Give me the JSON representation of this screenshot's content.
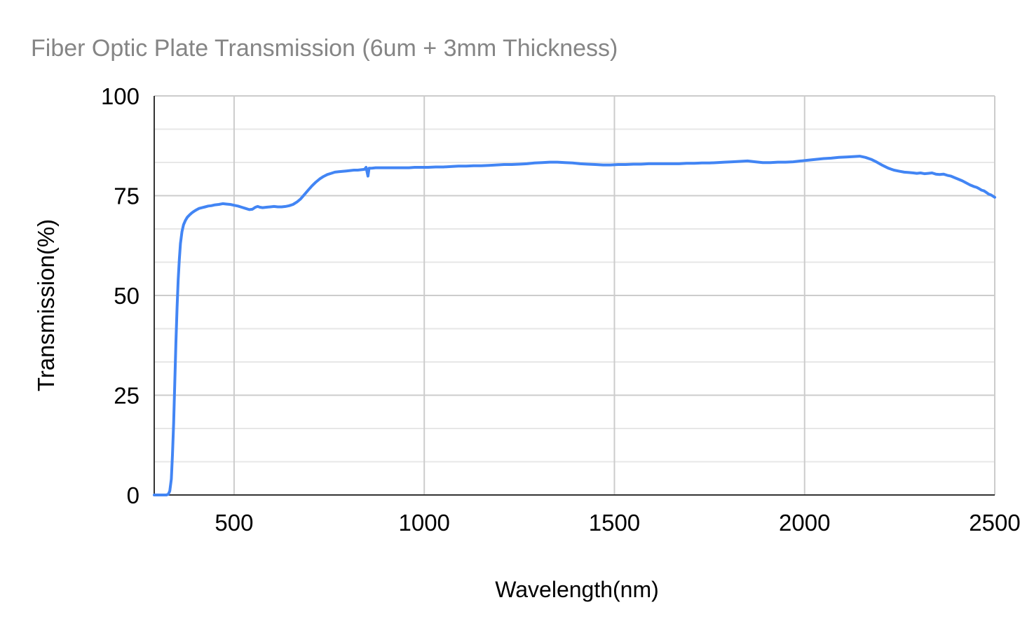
{
  "background": "#ffffff",
  "chart_data": {
    "type": "line",
    "title": "Fiber Optic Plate Transmission (6um + 3mm Thickness)",
    "xlabel": "Wavelength(nm)",
    "ylabel": "Transmission(%)",
    "xlim": [
      290,
      2500
    ],
    "ylim": [
      0,
      100
    ],
    "x_ticks": [
      500,
      1000,
      1500,
      2000,
      2500
    ],
    "y_ticks": [
      0,
      25,
      50,
      75,
      100
    ],
    "y_minor_per_major": 2,
    "grid": true,
    "legend": "none",
    "colors": {
      "title": "#858585",
      "axis_line": "#333333",
      "major_grid": "#cccccc",
      "minor_grid": "#e7e7e7",
      "tick_label": "#000000",
      "series": "#4285f4"
    },
    "series": [
      {
        "name": "Transmission",
        "color": "#4285f4",
        "stroke_width": 4,
        "points": [
          [
            290,
            0
          ],
          [
            298,
            0
          ],
          [
            306,
            0
          ],
          [
            314,
            0
          ],
          [
            322,
            0
          ],
          [
            327,
            0.2
          ],
          [
            331,
            1
          ],
          [
            335,
            4
          ],
          [
            338,
            10
          ],
          [
            341,
            18
          ],
          [
            344,
            28
          ],
          [
            347,
            38
          ],
          [
            350,
            47
          ],
          [
            353,
            54
          ],
          [
            356,
            59
          ],
          [
            359,
            63
          ],
          [
            363,
            66
          ],
          [
            367,
            67.7
          ],
          [
            372,
            68.8
          ],
          [
            377,
            69.6
          ],
          [
            383,
            70.2
          ],
          [
            389,
            70.7
          ],
          [
            395,
            71.1
          ],
          [
            400,
            71.4
          ],
          [
            408,
            71.8
          ],
          [
            416,
            72.0
          ],
          [
            424,
            72.2
          ],
          [
            432,
            72.4
          ],
          [
            440,
            72.5
          ],
          [
            450,
            72.7
          ],
          [
            460,
            72.8
          ],
          [
            470,
            73.0
          ],
          [
            480,
            72.9
          ],
          [
            490,
            72.8
          ],
          [
            500,
            72.6
          ],
          [
            510,
            72.4
          ],
          [
            520,
            72.1
          ],
          [
            530,
            71.8
          ],
          [
            540,
            71.5
          ],
          [
            548,
            71.6
          ],
          [
            556,
            72.1
          ],
          [
            562,
            72.3
          ],
          [
            568,
            72.1
          ],
          [
            575,
            72.0
          ],
          [
            585,
            72.1
          ],
          [
            595,
            72.2
          ],
          [
            605,
            72.3
          ],
          [
            615,
            72.2
          ],
          [
            625,
            72.2
          ],
          [
            635,
            72.3
          ],
          [
            645,
            72.5
          ],
          [
            655,
            72.8
          ],
          [
            665,
            73.4
          ],
          [
            675,
            74.2
          ],
          [
            685,
            75.3
          ],
          [
            695,
            76.4
          ],
          [
            705,
            77.5
          ],
          [
            715,
            78.4
          ],
          [
            725,
            79.2
          ],
          [
            735,
            79.8
          ],
          [
            745,
            80.3
          ],
          [
            755,
            80.6
          ],
          [
            765,
            80.9
          ],
          [
            775,
            81.0
          ],
          [
            785,
            81.1
          ],
          [
            795,
            81.2
          ],
          [
            805,
            81.3
          ],
          [
            815,
            81.4
          ],
          [
            825,
            81.4
          ],
          [
            835,
            81.5
          ],
          [
            843,
            81.6
          ],
          [
            847,
            82.1
          ],
          [
            850,
            80.8
          ],
          [
            852,
            79.9
          ],
          [
            855,
            81.9
          ],
          [
            862,
            81.9
          ],
          [
            872,
            82.0
          ],
          [
            885,
            82.0
          ],
          [
            900,
            82.0
          ],
          [
            915,
            82.0
          ],
          [
            930,
            82.0
          ],
          [
            945,
            82.0
          ],
          [
            960,
            82.0
          ],
          [
            975,
            82.1
          ],
          [
            990,
            82.1
          ],
          [
            1010,
            82.1
          ],
          [
            1030,
            82.2
          ],
          [
            1050,
            82.2
          ],
          [
            1070,
            82.3
          ],
          [
            1090,
            82.4
          ],
          [
            1110,
            82.4
          ],
          [
            1130,
            82.5
          ],
          [
            1150,
            82.5
          ],
          [
            1170,
            82.6
          ],
          [
            1190,
            82.7
          ],
          [
            1210,
            82.8
          ],
          [
            1230,
            82.8
          ],
          [
            1250,
            82.9
          ],
          [
            1270,
            83.0
          ],
          [
            1290,
            83.2
          ],
          [
            1310,
            83.3
          ],
          [
            1330,
            83.4
          ],
          [
            1350,
            83.4
          ],
          [
            1370,
            83.3
          ],
          [
            1390,
            83.2
          ],
          [
            1410,
            83.0
          ],
          [
            1430,
            82.9
          ],
          [
            1450,
            82.8
          ],
          [
            1470,
            82.7
          ],
          [
            1490,
            82.7
          ],
          [
            1510,
            82.8
          ],
          [
            1530,
            82.8
          ],
          [
            1550,
            82.9
          ],
          [
            1570,
            82.9
          ],
          [
            1590,
            83.0
          ],
          [
            1610,
            83.0
          ],
          [
            1630,
            83.0
          ],
          [
            1650,
            83.0
          ],
          [
            1670,
            83.0
          ],
          [
            1690,
            83.1
          ],
          [
            1710,
            83.1
          ],
          [
            1730,
            83.2
          ],
          [
            1750,
            83.2
          ],
          [
            1770,
            83.3
          ],
          [
            1790,
            83.4
          ],
          [
            1810,
            83.5
          ],
          [
            1830,
            83.6
          ],
          [
            1850,
            83.7
          ],
          [
            1870,
            83.5
          ],
          [
            1890,
            83.3
          ],
          [
            1910,
            83.3
          ],
          [
            1930,
            83.4
          ],
          [
            1950,
            83.4
          ],
          [
            1970,
            83.5
          ],
          [
            1990,
            83.7
          ],
          [
            2010,
            83.9
          ],
          [
            2030,
            84.1
          ],
          [
            2050,
            84.3
          ],
          [
            2070,
            84.4
          ],
          [
            2090,
            84.6
          ],
          [
            2110,
            84.7
          ],
          [
            2130,
            84.8
          ],
          [
            2145,
            84.9
          ],
          [
            2160,
            84.6
          ],
          [
            2175,
            84.1
          ],
          [
            2190,
            83.4
          ],
          [
            2205,
            82.6
          ],
          [
            2220,
            81.9
          ],
          [
            2235,
            81.4
          ],
          [
            2250,
            81.1
          ],
          [
            2262,
            80.9
          ],
          [
            2274,
            80.8
          ],
          [
            2286,
            80.7
          ],
          [
            2295,
            80.6
          ],
          [
            2305,
            80.7
          ],
          [
            2315,
            80.5
          ],
          [
            2325,
            80.6
          ],
          [
            2335,
            80.7
          ],
          [
            2345,
            80.4
          ],
          [
            2355,
            80.3
          ],
          [
            2365,
            80.4
          ],
          [
            2375,
            80.1
          ],
          [
            2385,
            79.9
          ],
          [
            2395,
            79.5
          ],
          [
            2405,
            79.1
          ],
          [
            2415,
            78.7
          ],
          [
            2425,
            78.2
          ],
          [
            2435,
            77.7
          ],
          [
            2445,
            77.3
          ],
          [
            2452,
            77.1
          ],
          [
            2458,
            76.8
          ],
          [
            2465,
            76.4
          ],
          [
            2472,
            76.2
          ],
          [
            2478,
            75.8
          ],
          [
            2484,
            75.4
          ],
          [
            2490,
            75.2
          ],
          [
            2495,
            74.9
          ],
          [
            2500,
            74.6
          ]
        ]
      }
    ]
  }
}
